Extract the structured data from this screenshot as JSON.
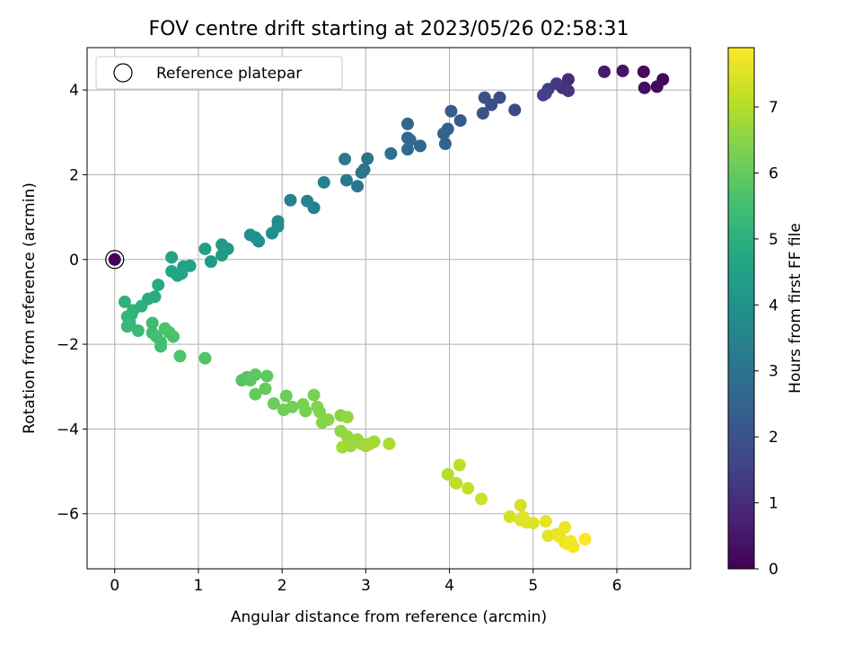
{
  "chart_data": {
    "type": "scatter",
    "title": "FOV centre drift starting at 2023/05/26 02:58:31",
    "xlabel": "Angular distance from reference (arcmin)",
    "ylabel": "Rotation from reference (arcmin)",
    "xlim": [
      -0.33,
      6.88
    ],
    "ylim": [
      -7.3,
      5.0
    ],
    "xticks": [
      "0",
      "1",
      "2",
      "3",
      "4",
      "5",
      "6"
    ],
    "yticks": [
      "−6",
      "−4",
      "−2",
      "0",
      "2",
      "4"
    ],
    "grid": true,
    "legend": {
      "entries": [
        "Reference platepar"
      ],
      "placement": "top-left"
    },
    "reference_point": {
      "x": 0,
      "y": 0
    },
    "colorbar": {
      "label": "Hours from first FF file",
      "colormap": "viridis",
      "range": [
        0,
        7.9
      ],
      "ticks": [
        "0",
        "1",
        "2",
        "3",
        "4",
        "5",
        "6",
        "7"
      ]
    },
    "series": [
      {
        "points": [
          [
            6.55,
            4.25,
            0.1
          ],
          [
            6.48,
            4.08,
            0.2
          ],
          [
            6.33,
            4.05,
            0.3
          ],
          [
            6.32,
            4.43,
            0.2
          ],
          [
            6.07,
            4.45,
            0.4
          ],
          [
            5.85,
            4.43,
            0.6
          ],
          [
            5.42,
            4.25,
            1.0
          ],
          [
            5.35,
            4.05,
            1.1
          ],
          [
            5.42,
            3.98,
            1.2
          ],
          [
            5.28,
            4.15,
            1.3
          ],
          [
            5.18,
            4.02,
            1.4
          ],
          [
            5.15,
            3.92,
            1.5
          ],
          [
            5.12,
            3.88,
            1.6
          ],
          [
            4.78,
            3.53,
            1.7
          ],
          [
            4.6,
            3.82,
            1.8
          ],
          [
            4.5,
            3.65,
            1.9
          ],
          [
            4.42,
            3.82,
            2.0
          ],
          [
            4.4,
            3.45,
            2.0
          ],
          [
            4.13,
            3.28,
            2.2
          ],
          [
            4.02,
            3.5,
            2.3
          ],
          [
            3.98,
            3.08,
            2.4
          ],
          [
            3.93,
            2.97,
            2.5
          ],
          [
            3.95,
            2.73,
            2.5
          ],
          [
            3.65,
            2.68,
            2.6
          ],
          [
            3.5,
            3.2,
            2.6
          ],
          [
            3.5,
            2.87,
            2.7
          ],
          [
            3.53,
            2.82,
            2.7
          ],
          [
            3.5,
            2.6,
            2.8
          ],
          [
            3.3,
            2.5,
            2.9
          ],
          [
            3.02,
            2.38,
            3.0
          ],
          [
            2.98,
            2.12,
            3.0
          ],
          [
            2.95,
            2.05,
            3.1
          ],
          [
            2.9,
            1.73,
            3.1
          ],
          [
            2.75,
            2.37,
            3.2
          ],
          [
            2.77,
            1.87,
            3.2
          ],
          [
            2.5,
            1.82,
            3.4
          ],
          [
            2.38,
            1.22,
            3.4
          ],
          [
            2.3,
            1.38,
            3.5
          ],
          [
            2.1,
            1.4,
            3.5
          ],
          [
            1.95,
            0.78,
            3.8
          ],
          [
            1.95,
            0.9,
            3.8
          ],
          [
            1.88,
            0.62,
            3.9
          ],
          [
            1.72,
            0.43,
            3.9
          ],
          [
            1.68,
            0.52,
            4.0
          ],
          [
            1.62,
            0.58,
            4.0
          ],
          [
            1.35,
            0.25,
            4.2
          ],
          [
            1.28,
            0.1,
            4.2
          ],
          [
            1.28,
            0.35,
            4.3
          ],
          [
            1.15,
            -0.05,
            4.3
          ],
          [
            1.08,
            0.25,
            4.4
          ],
          [
            0.9,
            -0.15,
            4.5
          ],
          [
            0.82,
            -0.17,
            4.5
          ],
          [
            0.8,
            -0.33,
            4.6
          ],
          [
            0.75,
            -0.38,
            4.6
          ],
          [
            0.68,
            -0.28,
            4.7
          ],
          [
            0.68,
            0.05,
            4.6
          ],
          [
            0.52,
            -0.6,
            4.8
          ],
          [
            0.48,
            -0.88,
            4.9
          ],
          [
            0.4,
            -0.93,
            4.9
          ],
          [
            0.32,
            -1.1,
            5.0
          ],
          [
            0.22,
            -1.2,
            5.0
          ],
          [
            0.2,
            -1.3,
            5.1
          ],
          [
            0.12,
            -1.0,
            5.1
          ],
          [
            0.15,
            -1.35,
            5.2
          ],
          [
            0.18,
            -1.5,
            5.2
          ],
          [
            0.15,
            -1.58,
            5.3
          ],
          [
            0.28,
            -1.68,
            5.3
          ],
          [
            0.45,
            -1.5,
            5.4
          ],
          [
            0.45,
            -1.73,
            5.4
          ],
          [
            0.5,
            -1.82,
            5.5
          ],
          [
            0.55,
            -1.95,
            5.5
          ],
          [
            0.55,
            -2.05,
            5.5
          ],
          [
            0.6,
            -1.63,
            5.6
          ],
          [
            0.65,
            -1.72,
            5.6
          ],
          [
            0.7,
            -1.82,
            5.6
          ],
          [
            0.78,
            -2.28,
            5.7
          ],
          [
            1.08,
            -2.33,
            5.7
          ],
          [
            1.52,
            -2.85,
            5.8
          ],
          [
            1.58,
            -2.78,
            5.8
          ],
          [
            1.68,
            -2.72,
            5.9
          ],
          [
            1.82,
            -2.75,
            5.9
          ],
          [
            1.62,
            -2.85,
            5.9
          ],
          [
            1.68,
            -3.18,
            6.0
          ],
          [
            1.8,
            -3.05,
            6.0
          ],
          [
            1.9,
            -3.4,
            6.1
          ],
          [
            2.05,
            -3.22,
            6.1
          ],
          [
            2.02,
            -3.55,
            6.2
          ],
          [
            2.12,
            -3.48,
            6.2
          ],
          [
            2.25,
            -3.42,
            6.3
          ],
          [
            2.28,
            -3.58,
            6.3
          ],
          [
            2.38,
            -3.2,
            6.3
          ],
          [
            2.42,
            -3.48,
            6.4
          ],
          [
            2.45,
            -3.6,
            6.4
          ],
          [
            2.48,
            -3.85,
            6.5
          ],
          [
            2.55,
            -3.78,
            6.5
          ],
          [
            2.7,
            -3.68,
            6.5
          ],
          [
            2.78,
            -3.72,
            6.6
          ],
          [
            2.7,
            -4.05,
            6.6
          ],
          [
            2.78,
            -4.18,
            6.6
          ],
          [
            2.85,
            -4.3,
            6.7
          ],
          [
            2.82,
            -4.4,
            6.7
          ],
          [
            2.9,
            -4.25,
            6.7
          ],
          [
            2.95,
            -4.35,
            6.7
          ],
          [
            2.72,
            -4.43,
            6.8
          ],
          [
            3.0,
            -4.4,
            6.8
          ],
          [
            3.05,
            -4.35,
            6.8
          ],
          [
            3.1,
            -4.3,
            6.8
          ],
          [
            3.28,
            -4.35,
            6.9
          ],
          [
            3.98,
            -5.07,
            7.0
          ],
          [
            4.08,
            -5.28,
            7.1
          ],
          [
            4.12,
            -4.85,
            7.1
          ],
          [
            4.22,
            -5.4,
            7.2
          ],
          [
            4.38,
            -5.65,
            7.3
          ],
          [
            4.72,
            -6.07,
            7.4
          ],
          [
            4.85,
            -5.8,
            7.4
          ],
          [
            4.88,
            -6.08,
            7.5
          ],
          [
            4.85,
            -6.15,
            7.5
          ],
          [
            4.92,
            -6.2,
            7.5
          ],
          [
            5.0,
            -6.22,
            7.5
          ],
          [
            5.15,
            -6.18,
            7.6
          ],
          [
            5.18,
            -6.52,
            7.6
          ],
          [
            5.28,
            -6.48,
            7.6
          ],
          [
            5.32,
            -6.55,
            7.7
          ],
          [
            5.38,
            -6.32,
            7.7
          ],
          [
            5.38,
            -6.68,
            7.7
          ],
          [
            5.42,
            -6.72,
            7.8
          ],
          [
            5.45,
            -6.65,
            7.8
          ],
          [
            5.48,
            -6.78,
            7.8
          ],
          [
            5.62,
            -6.6,
            7.9
          ],
          [
            0,
            0,
            0
          ]
        ]
      }
    ]
  }
}
